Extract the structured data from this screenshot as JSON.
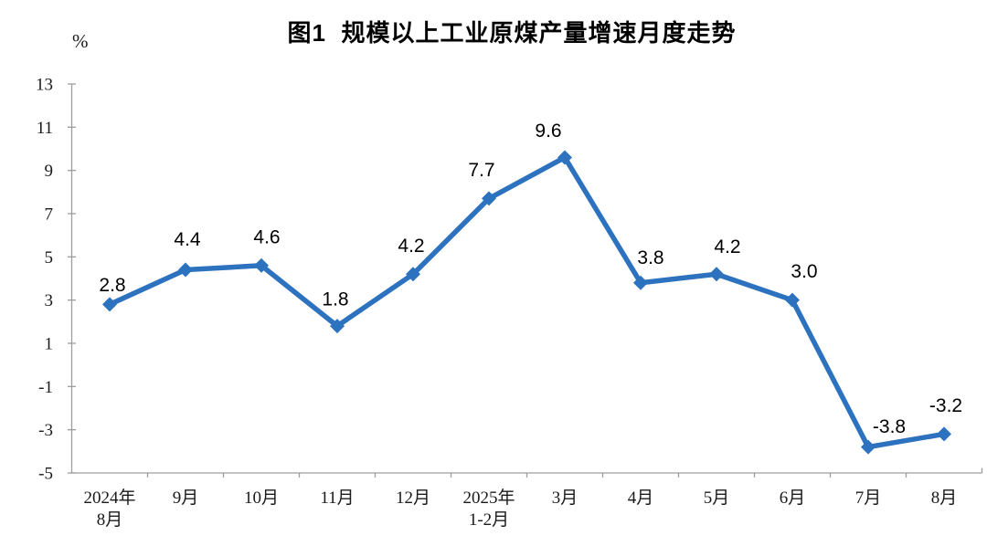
{
  "chart_data": {
    "type": "line",
    "title": "图1  规模以上工业原煤产量增速月度走势",
    "unit": "%",
    "xlabel": "",
    "ylabel": "%",
    "categories": [
      [
        "2024年",
        "8月"
      ],
      [
        "9月"
      ],
      [
        "10月"
      ],
      [
        "11月"
      ],
      [
        "12月"
      ],
      [
        "2025年",
        "1-2月"
      ],
      [
        "3月"
      ],
      [
        "4月"
      ],
      [
        "5月"
      ],
      [
        "6月"
      ],
      [
        "7月"
      ],
      [
        "8月"
      ]
    ],
    "series": [
      {
        "name": "规模以上工业原煤产量增速",
        "values": [
          2.8,
          4.4,
          4.6,
          1.8,
          4.2,
          7.7,
          9.6,
          3.8,
          4.2,
          3.0,
          -3.8,
          -3.2
        ],
        "point_labels": [
          "2.8",
          "4.4",
          "4.6",
          "1.8",
          "4.2",
          "7.7",
          "9.6",
          "3.8",
          "4.2",
          "3.0",
          "-3.8",
          "-3.2"
        ]
      }
    ],
    "ylim": [
      -5,
      13
    ],
    "yticks": [
      13,
      11,
      9,
      7,
      5,
      3,
      1,
      -1,
      -3,
      -5
    ],
    "grid": false,
    "legend": "none",
    "marker": "diamond",
    "colors": {
      "line": "#2C72BF",
      "marker": "#2C72BF",
      "axis": "#9E9E9E",
      "text": "#000000"
    },
    "label_dx": [
      3,
      2,
      6,
      -2,
      -2,
      -8,
      -18,
      11,
      12,
      13,
      23,
      2
    ],
    "label_dy": [
      -22,
      -34,
      -32,
      -30,
      -32,
      -32,
      -30,
      -28,
      -31,
      -32,
      -23,
      -32
    ]
  }
}
